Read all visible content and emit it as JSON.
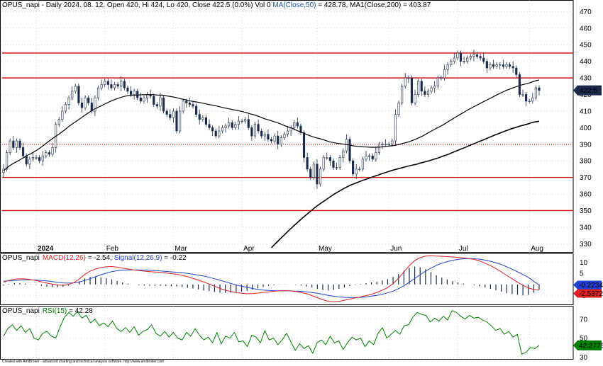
{
  "header": {
    "symbol": "OPUS_napi",
    "info": " - Daily 2024. 08. 12. Open 420, Hi 424, Lo 420, Close 422.5 (0.0%) Vol 0 ",
    "ma50_label": "MA(Close,50)",
    "ma50_value": " = 428.78, ",
    "ma200_label": "MA1(Close,200)",
    "ma200_value": " = 403.87"
  },
  "macd_header": {
    "symbol": "OPUS_napi",
    "macd_label": "MACD(12,26)",
    "macd_value": " = -2.54, ",
    "signal_label": "Signal(12,26,9)",
    "signal_value": " = -0.22"
  },
  "rsi_header": {
    "symbol": "OPUS_napi",
    "rsi_label": "RSI(15)",
    "rsi_value": " = 42.28"
  },
  "footer": "Created with AmiBroker - advanced charting and technical analysis software. http://www.amibroker.com",
  "colors": {
    "candle": "#1a2a4a",
    "ma50": "#000000",
    "ma200": "#000000",
    "hline": "#cc0000",
    "macd": "#e02020",
    "signal": "#2040d0",
    "hist": "#1a2a4a",
    "rsi": "#008000",
    "grid": "#b8b8b8"
  },
  "chart_data": [
    {
      "type": "candlestick",
      "title": "OPUS_napi - Daily 2024. 08. 12.",
      "ylim": [
        325,
        477
      ],
      "y_ticks": [
        330,
        340,
        350,
        360,
        370,
        380,
        390,
        400,
        410,
        420,
        430,
        440,
        450,
        460,
        470
      ],
      "x_ticks": [
        "2024",
        "Feb",
        "Mar",
        "Apr",
        "May",
        "Jun",
        "Jul",
        "Aug"
      ],
      "x_tick_index": [
        10,
        31,
        52,
        73,
        96,
        118,
        139,
        161
      ],
      "last_price_label": "422.5",
      "last_price": 422.5,
      "horizontal_lines": [
        {
          "value": 445,
          "style": "solid"
        },
        {
          "value": 430,
          "style": "solid"
        },
        {
          "value": 390,
          "style": "dotted"
        },
        {
          "value": 370,
          "style": "solid"
        },
        {
          "value": 350,
          "style": "solid"
        }
      ],
      "closes": [
        375,
        385,
        392,
        388,
        392,
        388,
        383,
        378,
        381,
        382,
        382,
        380,
        383,
        385,
        384,
        388,
        402,
        405,
        410,
        414,
        418,
        422,
        425,
        415,
        412,
        418,
        415,
        410,
        418,
        424,
        426,
        428,
        426,
        424,
        426,
        425,
        428,
        424,
        422,
        420,
        422,
        418,
        416,
        418,
        420,
        419,
        414,
        413,
        418,
        410,
        408,
        406,
        410,
        398,
        410,
        416,
        415,
        414,
        413,
        408,
        405,
        406,
        402,
        400,
        398,
        395,
        398,
        400,
        401,
        403,
        400,
        402,
        404,
        404,
        405,
        400,
        395,
        402,
        398,
        395,
        396,
        393,
        392,
        395,
        390,
        394,
        396,
        398,
        400,
        403,
        401,
        397,
        382,
        375,
        370,
        378,
        366,
        375,
        382,
        382,
        380,
        376,
        376,
        382,
        386,
        393,
        380,
        372,
        375,
        375,
        381,
        383,
        383,
        381,
        385,
        390,
        390,
        390,
        390,
        392,
        408,
        415,
        425,
        430,
        430,
        415,
        420,
        428,
        422,
        420,
        422,
        424,
        425,
        430,
        430,
        435,
        438,
        440,
        442,
        445,
        440,
        440,
        442,
        443,
        444,
        443,
        442,
        440,
        436,
        438,
        437,
        438,
        438,
        437,
        438,
        437,
        436,
        432,
        420,
        420,
        416,
        416,
        418,
        424,
        422.5
      ],
      "ma50": [
        374,
        376.5,
        378.3,
        379.8,
        381.4,
        383.1,
        384.5,
        386.2,
        388.1,
        390.3,
        392.4,
        394.4,
        396.3,
        398.4,
        400.7,
        402.7,
        404.6,
        406.6,
        408.5,
        410.4,
        411.9,
        413.2,
        414.6,
        416,
        417.1,
        418.1,
        418.9,
        419.5,
        419.6,
        419.7,
        419.9,
        419.9,
        419.9,
        419.7,
        419.6,
        419.2,
        418.7,
        418.2,
        417.5,
        416.9,
        416.2,
        415.7,
        415.2,
        414.6,
        414,
        413.5,
        412.9,
        412.2,
        411.6,
        411,
        410.5,
        409.9,
        409.2,
        408.3,
        407.6,
        406.6,
        405.4,
        404.6,
        403.7,
        402.8,
        401.7,
        400.5,
        399.6,
        398.3,
        397.1,
        396,
        394.9,
        394,
        393.3,
        392.4,
        391.5,
        390.9,
        390.4,
        390.1,
        389.7,
        389.1,
        388.7,
        388.5,
        388.3,
        388.2,
        388.2,
        388.3,
        388.7,
        389,
        389.3,
        389.9,
        390.7,
        391.5,
        392.5,
        393.7,
        395,
        396.6,
        398.2,
        399.7,
        401.1,
        402.8,
        404.6,
        406.3,
        407.9,
        409.6,
        411.2,
        412.7,
        414.1,
        415.6,
        417,
        418.4,
        419.9,
        421.3,
        422.5,
        423.6,
        424.6,
        425.6,
        426.3,
        427.1,
        428.1,
        428.8
      ],
      "ma50_start_index": 0,
      "ma200": [
        327.5,
        329.5,
        331.4,
        333.3,
        335.1,
        337,
        338.8,
        340.6,
        342.3,
        344,
        345.7,
        347.3,
        348.9,
        350.5,
        352.1,
        353.5,
        354.8,
        356.1,
        357.4,
        358.7,
        360,
        361.1,
        362.2,
        363.3,
        364.3,
        365.2,
        366,
        366.7,
        367.5,
        368.2,
        368.8,
        369.5,
        370.2,
        370.9,
        371.5,
        372.2,
        372.8,
        373.4,
        374,
        374.6,
        375.1,
        375.6,
        376.1,
        376.6,
        377.1,
        377.5,
        377.9,
        378.5,
        379,
        379.5,
        380,
        380.6,
        381.2,
        381.8,
        382.5,
        383.2,
        383.8,
        384.6,
        385.4,
        386.2,
        387,
        387.7,
        388.5,
        389.3,
        390.1,
        390.9,
        391.7,
        392.4,
        393.2,
        394,
        394.8,
        395.6,
        396.3,
        397.1,
        397.8,
        398.5,
        399.2,
        399.8,
        400.4,
        401,
        401.5,
        402,
        402.6,
        403.2,
        403.6,
        403.87
      ],
      "ma200_start_index": 82
    },
    {
      "type": "line",
      "title": "MACD(12,26)",
      "ylim": [
        -9,
        14
      ],
      "y_ticks": [
        10,
        5,
        -5
      ],
      "y_tick_labels": [
        "10",
        "5",
        "-5"
      ],
      "last_value_labels": [
        "-0.22346",
        "-2.53726"
      ],
      "series": [
        {
          "name": "MACD(12,26)",
          "values": [
            1,
            1.8,
            2.4,
            2.6,
            2.5,
            2.2,
            1.8,
            1.2,
            0.6,
            0.2,
            -0.2,
            -0.4,
            0,
            0.8,
            2.5,
            4.5,
            6,
            7,
            7.6,
            8,
            8.1,
            7.8,
            7.4,
            7,
            6.6,
            6.3,
            6,
            5.8,
            5.6,
            5.5,
            5.2,
            4.9,
            4.6,
            4.1,
            3.5,
            2.8,
            2,
            1.1,
            0.2,
            -0.8,
            -1.8,
            -2.6,
            -3.2,
            -3.7,
            -4,
            -4.2,
            -4.1,
            -3.9,
            -3.6,
            -3.3,
            -3.1,
            -2.8,
            -2.8,
            -2.9,
            -3.2,
            -3.6,
            -4.2,
            -5,
            -6,
            -6.9,
            -7.6,
            -7.8,
            -7.6,
            -7.1,
            -6.6,
            -6.1,
            -5.6,
            -5,
            -4.4,
            -3.6,
            -2.6,
            -1.4,
            0.4,
            2.8,
            5.6,
            8.5,
            10.8,
            12.1,
            12.8,
            13,
            12.8,
            12.7,
            12.6,
            12.4,
            12.2,
            12,
            11.7,
            11.3,
            10.6,
            9.6,
            8.5,
            7.2,
            5.7,
            4.1,
            2.6,
            1,
            -0.4,
            -1.5,
            -2.3,
            -2.54
          ]
        },
        {
          "name": "Signal(12,26,9)",
          "values": [
            1.5,
            1.6,
            1.8,
            2,
            2.1,
            2.1,
            2,
            1.8,
            1.6,
            1.3,
            1,
            0.7,
            0.6,
            0.7,
            1.1,
            1.8,
            2.6,
            3.5,
            4.4,
            5.1,
            5.8,
            6.2,
            6.5,
            6.6,
            6.6,
            6.6,
            6.5,
            6.4,
            6.2,
            6.1,
            5.9,
            5.7,
            5.5,
            5.3,
            5,
            4.6,
            4.2,
            3.8,
            3.2,
            2.6,
            1.9,
            1.2,
            0.5,
            -0.2,
            -0.8,
            -1.3,
            -1.8,
            -2.2,
            -2.5,
            -2.7,
            -2.8,
            -2.9,
            -2.9,
            -2.9,
            -3,
            -3.1,
            -3.3,
            -3.6,
            -4,
            -4.4,
            -4.9,
            -5.3,
            -5.6,
            -5.8,
            -5.9,
            -5.9,
            -5.8,
            -5.6,
            -5.3,
            -4.9,
            -4.4,
            -3.8,
            -3,
            -1.9,
            -0.6,
            1,
            2.7,
            4.4,
            6,
            7.4,
            8.6,
            9.6,
            10.3,
            10.9,
            11.3,
            11.6,
            11.7,
            11.6,
            11.4,
            11,
            10.5,
            9.8,
            9,
            8,
            6.9,
            5.7,
            4.5,
            3.2,
            1.4,
            -0.22
          ]
        }
      ]
    },
    {
      "type": "line",
      "title": "RSI(15)",
      "ylim": [
        28,
        84
      ],
      "y_ticks": [
        70,
        50,
        30
      ],
      "last_value_label": "42.2775",
      "series": [
        {
          "name": "RSI(15)",
          "values": [
            52,
            60,
            64,
            58,
            63,
            56,
            60,
            50,
            48,
            55,
            57,
            52,
            50,
            62,
            72,
            77,
            73,
            78,
            71,
            74,
            66,
            70,
            63,
            66,
            62,
            68,
            60,
            57,
            61,
            56,
            62,
            53,
            57,
            59,
            64,
            55,
            52,
            57,
            51,
            56,
            50,
            48,
            56,
            52,
            60,
            53,
            48,
            51,
            45,
            56,
            44,
            52,
            50,
            56,
            46,
            47,
            41,
            53,
            51,
            45,
            58,
            48,
            50,
            43,
            48,
            55,
            46,
            37,
            44,
            39,
            42,
            34,
            45,
            48,
            43,
            52,
            45,
            47,
            38,
            45,
            51,
            48,
            50,
            41,
            47,
            43,
            55,
            61,
            50,
            54,
            58,
            54,
            63,
            64,
            72,
            77,
            75,
            74,
            67,
            71,
            68,
            73,
            69,
            79,
            77,
            73,
            70,
            74,
            71,
            72,
            69,
            67,
            63,
            58,
            60,
            54,
            57,
            51,
            54,
            33,
            35,
            40,
            39,
            42.2775
          ]
        }
      ]
    }
  ]
}
